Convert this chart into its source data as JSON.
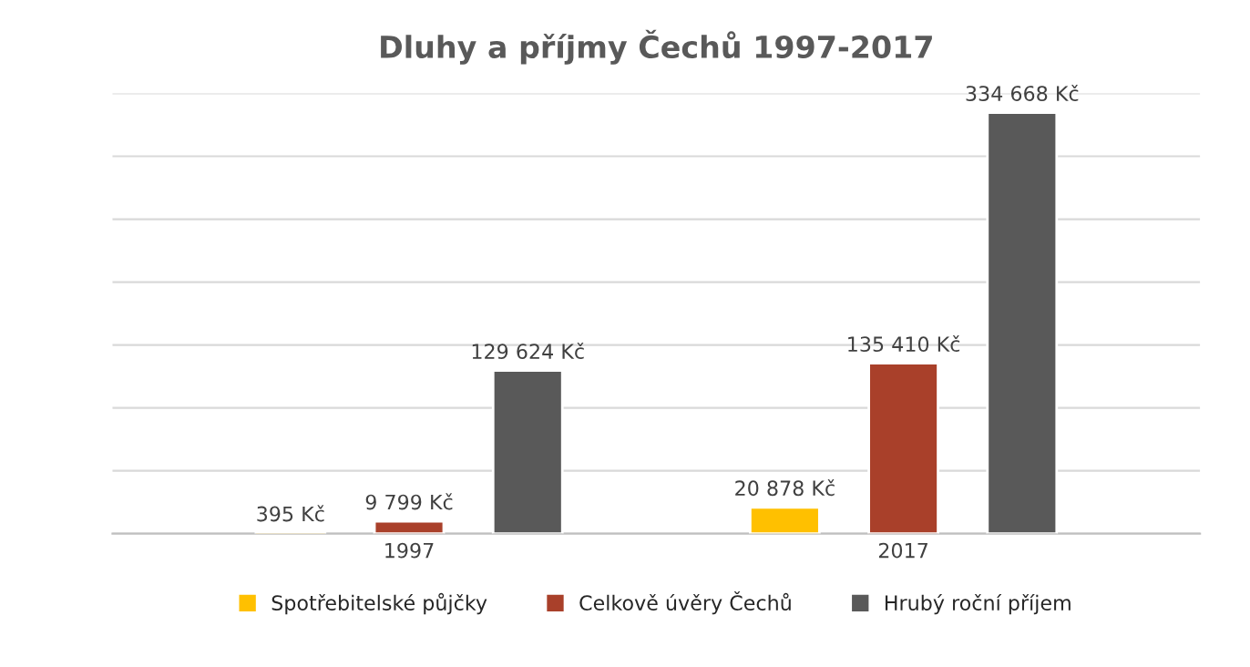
{
  "chart_data": {
    "type": "bar",
    "title": "Dluhy a příjmy Čechů 1997-2017",
    "categories": [
      "1997",
      "2017"
    ],
    "series": [
      {
        "name": "Spotřebitelské půjčky",
        "color": "#ffc000",
        "values": [
          395,
          20878
        ],
        "value_labels": [
          "395 Kč",
          "20 878 Kč"
        ]
      },
      {
        "name": "Celkově úvěry Čechů",
        "color": "#a9402a",
        "values": [
          9799,
          135410
        ],
        "value_labels": [
          "9 799 Kč",
          "135 410 Kč"
        ]
      },
      {
        "name": "Hrubý roční příjem",
        "color": "#595959",
        "values": [
          129624,
          334668
        ],
        "value_labels": [
          "129 624 Kč",
          "334 668 Kč"
        ]
      }
    ],
    "ylim": [
      0,
      350000
    ],
    "yticks": [
      {
        "value": 0,
        "label": null
      },
      {
        "value": 50000,
        "label": null
      },
      {
        "value": 100000,
        "label": null
      },
      {
        "value": 150000,
        "label": null
      },
      {
        "value": 200000,
        "label": null
      },
      {
        "value": 250000,
        "label": null
      },
      {
        "value": 300000,
        "label": null
      },
      {
        "value": 350000,
        "label": null
      }
    ],
    "grid": "y",
    "legend": "bottom"
  }
}
